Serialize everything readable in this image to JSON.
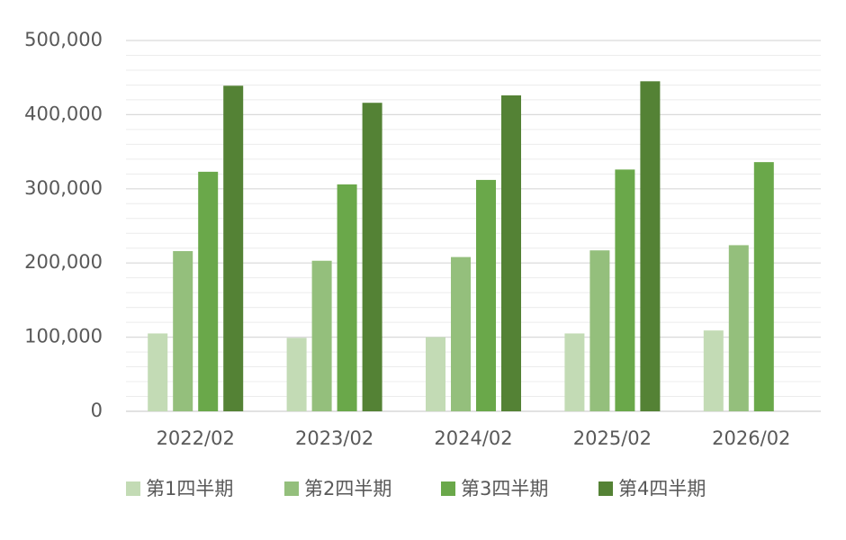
{
  "chart_data": {
    "type": "bar",
    "categories": [
      "2022/02",
      "2023/02",
      "2024/02",
      "2025/02",
      "2026/02"
    ],
    "series": [
      {
        "name": "第1四半期",
        "color": "#c3dbb5",
        "values": [
          105000,
          99000,
          100000,
          105000,
          109000
        ]
      },
      {
        "name": "第2四半期",
        "color": "#94bf7c",
        "values": [
          216000,
          203000,
          208000,
          217000,
          224000
        ]
      },
      {
        "name": "第3四半期",
        "color": "#6aa84a",
        "values": [
          323000,
          306000,
          312000,
          326000,
          336000
        ]
      },
      {
        "name": "第4四半期",
        "color": "#548235",
        "values": [
          439000,
          416000,
          426000,
          445000,
          null
        ]
      }
    ],
    "ylim": [
      0,
      500000
    ],
    "yticks": [
      0,
      {
        "value": 100000,
        "label": "100,000"
      },
      {
        "value": 200000,
        "label": "200,000"
      },
      {
        "value": 300000,
        "label": "300,000"
      },
      {
        "value": 400000,
        "label": "400,000"
      },
      {
        "value": 500000,
        "label": "500,000"
      }
    ],
    "grid": true,
    "minor_grid": true,
    "legend": "bottom"
  }
}
